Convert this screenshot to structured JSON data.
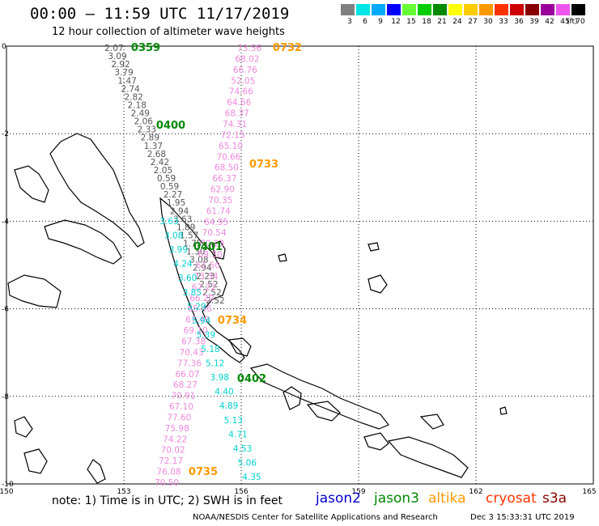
{
  "title": "00:00 – 11:59 UTC 11/17/2019",
  "subtitle": "12 hour collection of altimeter wave heights",
  "legend": {
    "unit": "(ft)",
    "bins": [
      {
        "color": "#808080",
        "label": "3"
      },
      {
        "color": "#00e5e5",
        "label": "6"
      },
      {
        "color": "#00aaff",
        "label": "9"
      },
      {
        "color": "#0000ff",
        "label": "12"
      },
      {
        "color": "#66ff33",
        "label": "15"
      },
      {
        "color": "#00cc00",
        "label": "18"
      },
      {
        "color": "#008800",
        "label": "21"
      },
      {
        "color": "#ffff00",
        "label": "24"
      },
      {
        "color": "#ffcc00",
        "label": "27"
      },
      {
        "color": "#ff9900",
        "label": "30"
      },
      {
        "color": "#ff3300",
        "label": "33"
      },
      {
        "color": "#cc0000",
        "label": "36"
      },
      {
        "color": "#880000",
        "label": "39"
      },
      {
        "color": "#990099",
        "label": "42"
      },
      {
        "color": "#ee55ee",
        "label": "45"
      },
      {
        "color": "#000000",
        "label": "70"
      }
    ]
  },
  "axes": {
    "x_ticks": [
      "150",
      "153",
      "156",
      "159",
      "162",
      "165"
    ],
    "y_ticks": [
      "0",
      "-2",
      "-4",
      "-6",
      "-8",
      "-10"
    ]
  },
  "passes": [
    {
      "time": "0359",
      "satellite": "jason3",
      "color": "#008800"
    },
    {
      "time": "0400",
      "satellite": "jason3",
      "color": "#008800"
    },
    {
      "time": "0401",
      "satellite": "jason3",
      "color": "#008800"
    },
    {
      "time": "0402",
      "satellite": "jason3",
      "color": "#008800"
    },
    {
      "time": "0732",
      "satellite": "altika",
      "color": "#ff9900"
    },
    {
      "time": "0733",
      "satellite": "altika",
      "color": "#ff9900"
    },
    {
      "time": "0734",
      "satellite": "altika",
      "color": "#ff9900"
    },
    {
      "time": "0735",
      "satellite": "altika",
      "color": "#ff9900"
    }
  ],
  "tracks": {
    "jason3_track": {
      "color": "#555555",
      "values": [
        "2.07",
        "3.09",
        "2.92",
        "3.79",
        "1.47",
        "2.74",
        "2.82",
        "2.18",
        "2.49",
        "2.06",
        "2.33",
        "2.89",
        "1.37",
        "2.68",
        "2.42",
        "2.05",
        "0.59",
        "0.59",
        "2.27",
        "1.95",
        "2.94",
        "3.63",
        "1.89",
        "1.57",
        "1.75",
        "1.30",
        "3.08",
        "2.94",
        "2.23",
        "2.52",
        "2.52",
        "2.52"
      ]
    },
    "altika_track": {
      "color": "#ee88dd",
      "values": [
        "73.56",
        "68.02",
        "66.76",
        "52.05",
        "74.66",
        "64.66",
        "68.37",
        "74.31",
        "72.15",
        "65.10",
        "70.66",
        "68.50",
        "66.37",
        "62.90",
        "70.35",
        "61.74",
        "64.95",
        "70.54",
        "70.23",
        "69.30",
        "61.50",
        "73.34",
        "62.22",
        "66.20",
        "65.46",
        "67.49",
        "69.10",
        "67.38",
        "70.43",
        "77.36",
        "66.07",
        "68.27",
        "70.91",
        "67.10",
        "77.60",
        "75.98",
        "74.22",
        "70.02",
        "72.17",
        "76.08",
        "70.50"
      ]
    },
    "cyan_track": {
      "color": "#00d0d0",
      "values": [
        "3.63",
        "3.08",
        "3.99",
        "4.24",
        "3.60",
        "3.85",
        "5.29",
        "5.94",
        "5.39",
        "5.18",
        "5.12",
        "3.98",
        "4.40",
        "4.89",
        "5.13",
        "4.71",
        "4.53",
        "5.06",
        "4.35"
      ]
    }
  },
  "footnote": "note: 1) Time is in UTC; 2) SWH is in feet",
  "satellites": [
    {
      "name": "jason2",
      "color": "#0000cc"
    },
    {
      "name": "jason3",
      "color": "#008800"
    },
    {
      "name": "altika",
      "color": "#ff9900"
    },
    {
      "name": "cryosat",
      "color": "#ff3300"
    },
    {
      "name": "s3a",
      "color": "#880000"
    }
  ],
  "credit": "NOAA/NESDIS Center for Satellite Applications and Research",
  "timestamp": "Dec  3 15:33:31 UTC 2019"
}
